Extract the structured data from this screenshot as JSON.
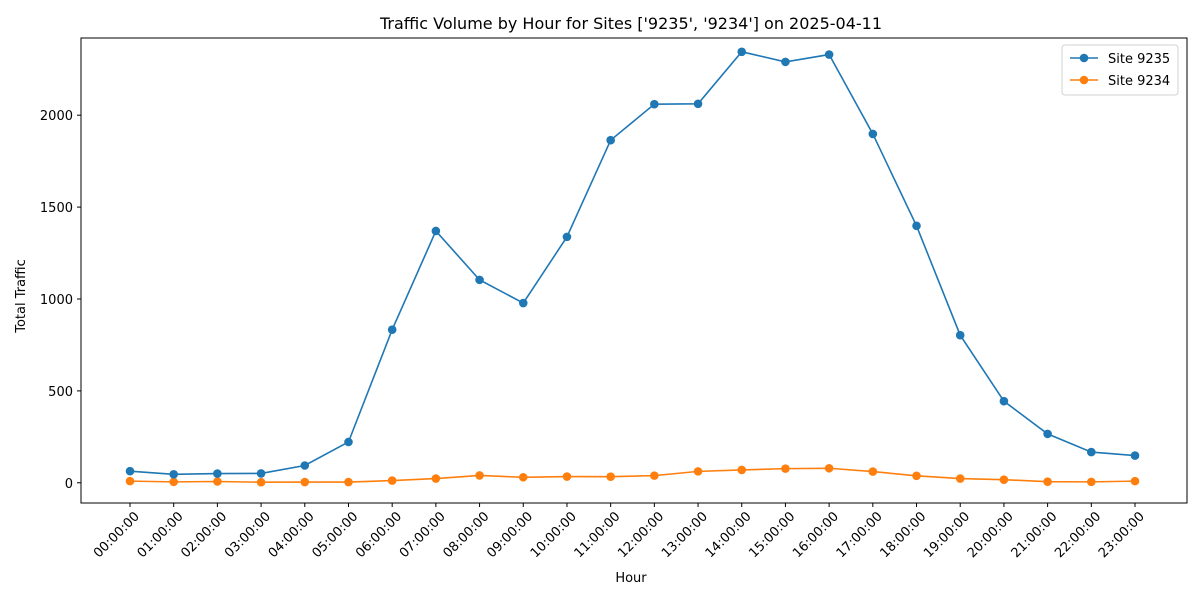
{
  "chart_data": {
    "type": "line",
    "title": "Traffic Volume by Hour for Sites ['9235', '9234'] on 2025-04-11",
    "xlabel": "Hour",
    "ylabel": "Total Traffic",
    "ylim": [
      -110,
      2420
    ],
    "yticks": [
      0,
      500,
      1000,
      1500,
      2000
    ],
    "grid": false,
    "legend_position": "top-right",
    "categories": [
      "00:00:00",
      "01:00:00",
      "02:00:00",
      "03:00:00",
      "04:00:00",
      "05:00:00",
      "06:00:00",
      "07:00:00",
      "08:00:00",
      "09:00:00",
      "10:00:00",
      "11:00:00",
      "12:00:00",
      "13:00:00",
      "14:00:00",
      "15:00:00",
      "16:00:00",
      "17:00:00",
      "18:00:00",
      "19:00:00",
      "20:00:00",
      "21:00:00",
      "22:00:00",
      "23:00:00"
    ],
    "series": [
      {
        "name": "Site 9235",
        "color": "#1f77b4",
        "values": [
          63,
          46,
          50,
          51,
          94,
          222,
          833,
          1370,
          1104,
          978,
          1338,
          1864,
          2060,
          2062,
          2345,
          2290,
          2330,
          1898,
          1398,
          803,
          444,
          266,
          167,
          148
        ]
      },
      {
        "name": "Site 9234",
        "color": "#ff7f0e",
        "values": [
          9,
          5,
          7,
          3,
          4,
          4,
          12,
          23,
          40,
          30,
          34,
          33,
          39,
          62,
          70,
          77,
          79,
          61,
          38,
          23,
          17,
          6,
          5,
          9
        ]
      }
    ]
  }
}
